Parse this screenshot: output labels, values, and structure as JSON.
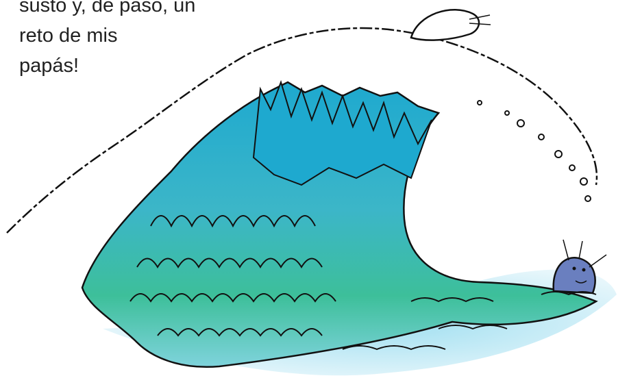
{
  "story": {
    "lines": [
      "susto y, de paso, un",
      "reto de mis",
      "papás!"
    ]
  },
  "illustration": {
    "subject": "cartoon breaking wave with two small seals",
    "colors": {
      "wave_dark": "#1ea9cf",
      "wave_mid": "#3cb6c8",
      "wave_green": "#3dbf9a",
      "water_light": "#a6dff0",
      "seal_body": "#6a7fbf",
      "outline": "#111111"
    }
  }
}
